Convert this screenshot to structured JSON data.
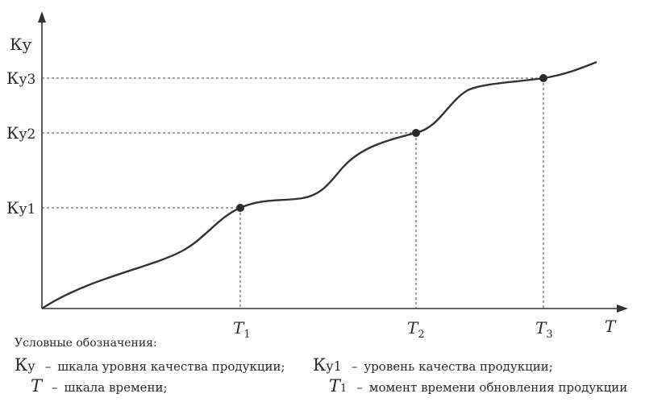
{
  "chart_data": {
    "type": "line",
    "title": "",
    "xlabel": "T",
    "ylabel": "Ку",
    "grid": false,
    "points": [
      {
        "label": "T1",
        "y_label": "Ку1"
      },
      {
        "label": "T2",
        "y_label": "Ку2"
      },
      {
        "label": "T3",
        "y_label": "Ку3"
      }
    ],
    "x_ticks": [
      "T1",
      "T2",
      "T3"
    ],
    "y_ticks": [
      "Ку1",
      "Ку2",
      "Ку3"
    ]
  },
  "legend": {
    "title": "Условные обозначения:",
    "items": [
      {
        "symbol_main": "К",
        "symbol_sub": "у",
        "dash": "–",
        "text": "шкала уровня качества продукции;"
      },
      {
        "symbol_main": "К",
        "symbol_sub": "у1",
        "dash": "–",
        "text": "уровень качества продукции;"
      },
      {
        "symbol_main": "T",
        "symbol_sub": "",
        "dash": "–",
        "text": "шкала времени;"
      },
      {
        "symbol_main": "T",
        "symbol_sub": "1",
        "dash": "–",
        "text": "момент времени обновления продукции"
      }
    ]
  }
}
